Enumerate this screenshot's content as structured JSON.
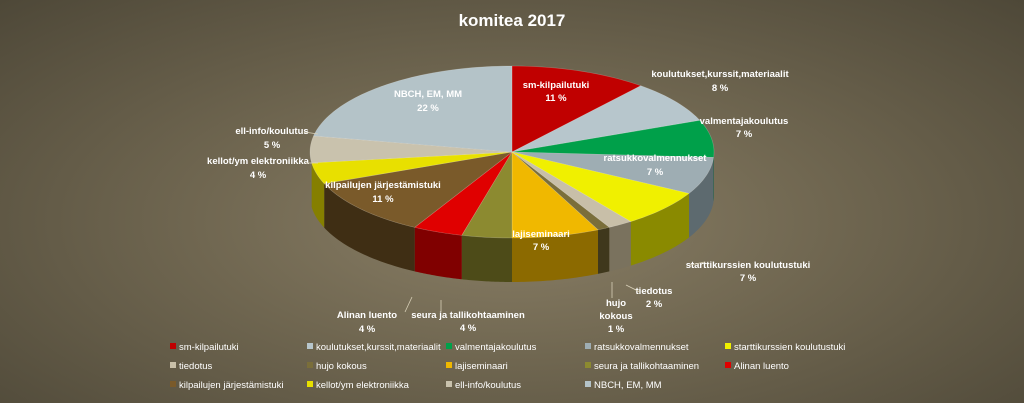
{
  "chart_data": {
    "type": "pie",
    "title": "komitea  2017",
    "slices": [
      {
        "name": "sm-kilpailutuki",
        "value": 11,
        "label": "11 %",
        "color": "#c00000",
        "side": "#7a0000"
      },
      {
        "name": "koulutukset,kurssit,materiaalit",
        "value": 8,
        "label": "8 %",
        "color": "#b7c6cc",
        "side": "#6d7b80"
      },
      {
        "name": "valmentajakoulutus",
        "value": 7,
        "label": "7 %",
        "color": "#00a04a",
        "side": "#005c2a"
      },
      {
        "name": "ratsukkovalmennukset",
        "value": 7,
        "label": "7 %",
        "color": "#9eadb3",
        "side": "#5d6a6f"
      },
      {
        "name": "starttikurssien koulutustuki",
        "value": 7,
        "label": "7 %",
        "color": "#f0f000",
        "side": "#8a8a00"
      },
      {
        "name": "tiedotus",
        "value": 2,
        "label": "2 %",
        "color": "#c8bfa8",
        "side": "#7a725e"
      },
      {
        "name": "hujo kokous",
        "value": 1,
        "label": "1 %",
        "color": "#7a6e3a",
        "side": "#3f381c"
      },
      {
        "name": "lajiseminaari",
        "value": 7,
        "label": "7 %",
        "color": "#f0b800",
        "side": "#8c6a00"
      },
      {
        "name": "seura ja tallikohtaaminen",
        "value": 4,
        "label": "4 %",
        "color": "#8c8a30",
        "side": "#4d4b18"
      },
      {
        "name": "Alinan luento",
        "value": 4,
        "label": "4 %",
        "color": "#e00000",
        "side": "#800000"
      },
      {
        "name": "kilpailujen järjestämistuki",
        "value": 11,
        "label": "11 %",
        "color": "#7a5a2a",
        "side": "#3f2e14"
      },
      {
        "name": "kellot/ym elektroniikka",
        "value": 4,
        "label": "4 %",
        "color": "#e8e000",
        "side": "#857f00"
      },
      {
        "name": "ell-info/koulutus",
        "value": 5,
        "label": "5 %",
        "color": "#c9c2ad",
        "side": "#756f5f"
      },
      {
        "name": "NBCH, EM, MM",
        "value": 22,
        "label": "22 %",
        "color": "#b4c3c8",
        "side": "#6a777b"
      }
    ],
    "legend_position": "bottom"
  }
}
